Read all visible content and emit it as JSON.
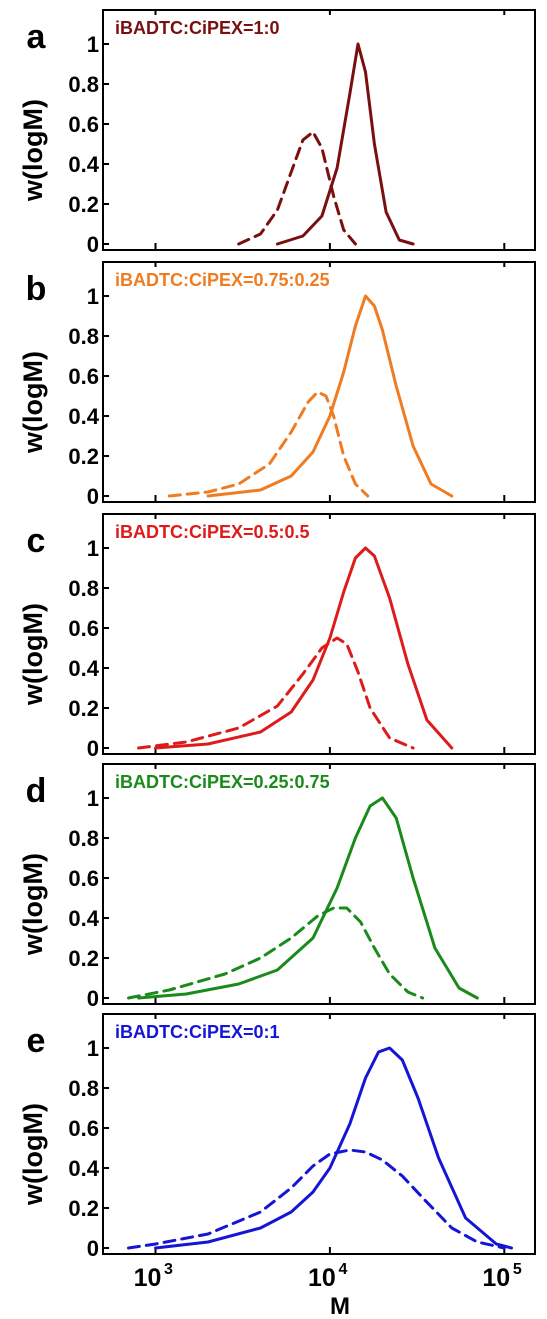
{
  "chart_data": [
    {
      "type": "line",
      "panel_label": "a",
      "annotation": "iBADTC:CiPEX=1:0",
      "color": "#7a0f0f",
      "ylabel": "w(logM)",
      "ylim": [
        0,
        1.15
      ],
      "xlim": [
        500,
        150000
      ],
      "x_scale": "log",
      "y_ticks": [
        0,
        0.2,
        0.4,
        0.6,
        0.8,
        1
      ],
      "series": [
        {
          "style": "solid",
          "x": [
            5000,
            7000,
            9000,
            11000,
            13000,
            14500,
            16000,
            18000,
            21000,
            25000,
            30000
          ],
          "values": [
            0.0,
            0.04,
            0.14,
            0.38,
            0.75,
            1.0,
            0.86,
            0.5,
            0.16,
            0.02,
            0.0
          ]
        },
        {
          "style": "dashed",
          "x": [
            3000,
            4000,
            5000,
            6000,
            7000,
            8000,
            9000,
            10500,
            12000,
            14000
          ],
          "values": [
            0.0,
            0.05,
            0.17,
            0.36,
            0.52,
            0.56,
            0.48,
            0.24,
            0.07,
            0.0
          ]
        }
      ]
    },
    {
      "type": "line",
      "panel_label": "b",
      "annotation": "iBADTC:CiPEX=0.75:0.25",
      "color": "#f07c22",
      "ylabel": "w(logM)",
      "ylim": [
        0,
        1.15
      ],
      "xlim": [
        500,
        150000
      ],
      "x_scale": "log",
      "y_ticks": [
        0,
        0.2,
        0.4,
        0.6,
        0.8,
        1
      ],
      "series": [
        {
          "style": "solid",
          "x": [
            2000,
            4000,
            6000,
            8000,
            10000,
            12000,
            14000,
            16000,
            18000,
            20000,
            24000,
            30000,
            38000,
            50000
          ],
          "values": [
            0.0,
            0.03,
            0.1,
            0.22,
            0.4,
            0.62,
            0.85,
            1.0,
            0.95,
            0.83,
            0.55,
            0.25,
            0.06,
            0.0
          ]
        },
        {
          "style": "dashed",
          "x": [
            1200,
            2000,
            3000,
            4500,
            6000,
            7500,
            8500,
            9500,
            10500,
            12000,
            14000,
            16500
          ],
          "values": [
            0.0,
            0.02,
            0.06,
            0.16,
            0.32,
            0.47,
            0.52,
            0.5,
            0.4,
            0.2,
            0.06,
            0.0
          ]
        }
      ]
    },
    {
      "type": "line",
      "panel_label": "c",
      "annotation": "iBADTC:CiPEX=0.5:0.5",
      "color": "#de1b1b",
      "ylabel": "w(logM)",
      "ylim": [
        0,
        1.15
      ],
      "xlim": [
        500,
        150000
      ],
      "x_scale": "log",
      "y_ticks": [
        0,
        0.2,
        0.4,
        0.6,
        0.8,
        1
      ],
      "series": [
        {
          "style": "solid",
          "x": [
            1000,
            2000,
            4000,
            6000,
            8000,
            10000,
            12000,
            14000,
            16000,
            18000,
            22000,
            28000,
            36000,
            50000
          ],
          "values": [
            0.0,
            0.02,
            0.08,
            0.18,
            0.34,
            0.55,
            0.78,
            0.95,
            1.0,
            0.96,
            0.75,
            0.42,
            0.14,
            0.0
          ]
        },
        {
          "style": "dashed",
          "x": [
            800,
            1500,
            3000,
            5000,
            7000,
            9000,
            11000,
            12500,
            14500,
            17000,
            22000,
            30000
          ],
          "values": [
            0.0,
            0.03,
            0.1,
            0.21,
            0.37,
            0.5,
            0.55,
            0.52,
            0.38,
            0.2,
            0.05,
            0.0
          ]
        }
      ]
    },
    {
      "type": "line",
      "panel_label": "d",
      "annotation": "iBADTC:CiPEX=0.25:0.75",
      "color": "#1a8a1a",
      "ylabel": "w(logM)",
      "ylim": [
        0,
        1.15
      ],
      "xlim": [
        500,
        150000
      ],
      "x_scale": "log",
      "y_ticks": [
        0,
        0.2,
        0.4,
        0.6,
        0.8,
        1
      ],
      "series": [
        {
          "style": "solid",
          "x": [
            800,
            1500,
            3000,
            5000,
            8000,
            11000,
            14000,
            17000,
            20000,
            24000,
            30000,
            40000,
            55000,
            70000
          ],
          "values": [
            0.0,
            0.02,
            0.07,
            0.14,
            0.3,
            0.55,
            0.8,
            0.96,
            1.0,
            0.9,
            0.6,
            0.25,
            0.05,
            0.0
          ]
        },
        {
          "style": "dashed",
          "x": [
            700,
            1200,
            2500,
            4000,
            6000,
            8500,
            10500,
            12500,
            15000,
            18000,
            22000,
            28000,
            34000
          ],
          "values": [
            0.0,
            0.04,
            0.12,
            0.2,
            0.3,
            0.41,
            0.45,
            0.45,
            0.38,
            0.25,
            0.12,
            0.03,
            0.0
          ]
        }
      ]
    },
    {
      "type": "line",
      "panel_label": "e",
      "annotation": "iBADTC:CiPEX=0:1",
      "color": "#1515d6",
      "ylabel": "w(logM)",
      "xlabel": "M",
      "ylim": [
        0,
        1.15
      ],
      "xlim": [
        500,
        150000
      ],
      "x_scale": "log",
      "y_ticks": [
        0,
        0.2,
        0.4,
        0.6,
        0.8,
        1
      ],
      "x_ticks": [
        {
          "value": 1000,
          "base": "10",
          "exponent": "3"
        },
        {
          "value": 10000,
          "base": "10",
          "exponent": "4"
        },
        {
          "value": 100000,
          "base": "10",
          "exponent": "5"
        }
      ],
      "series": [
        {
          "style": "solid",
          "x": [
            1000,
            2000,
            4000,
            6000,
            8000,
            10000,
            13000,
            16000,
            19000,
            22000,
            26000,
            32000,
            42000,
            60000,
            90000,
            110000
          ],
          "values": [
            0.0,
            0.03,
            0.1,
            0.18,
            0.28,
            0.4,
            0.62,
            0.85,
            0.98,
            1.0,
            0.94,
            0.75,
            0.45,
            0.15,
            0.02,
            0.0
          ]
        },
        {
          "style": "dashed",
          "x": [
            700,
            1000,
            2000,
            4000,
            6000,
            8000,
            10000,
            13000,
            16000,
            20000,
            26000,
            35000,
            50000,
            70000,
            100000
          ],
          "values": [
            0.0,
            0.02,
            0.07,
            0.18,
            0.3,
            0.41,
            0.47,
            0.49,
            0.48,
            0.44,
            0.36,
            0.24,
            0.1,
            0.03,
            0.0
          ]
        }
      ]
    }
  ]
}
